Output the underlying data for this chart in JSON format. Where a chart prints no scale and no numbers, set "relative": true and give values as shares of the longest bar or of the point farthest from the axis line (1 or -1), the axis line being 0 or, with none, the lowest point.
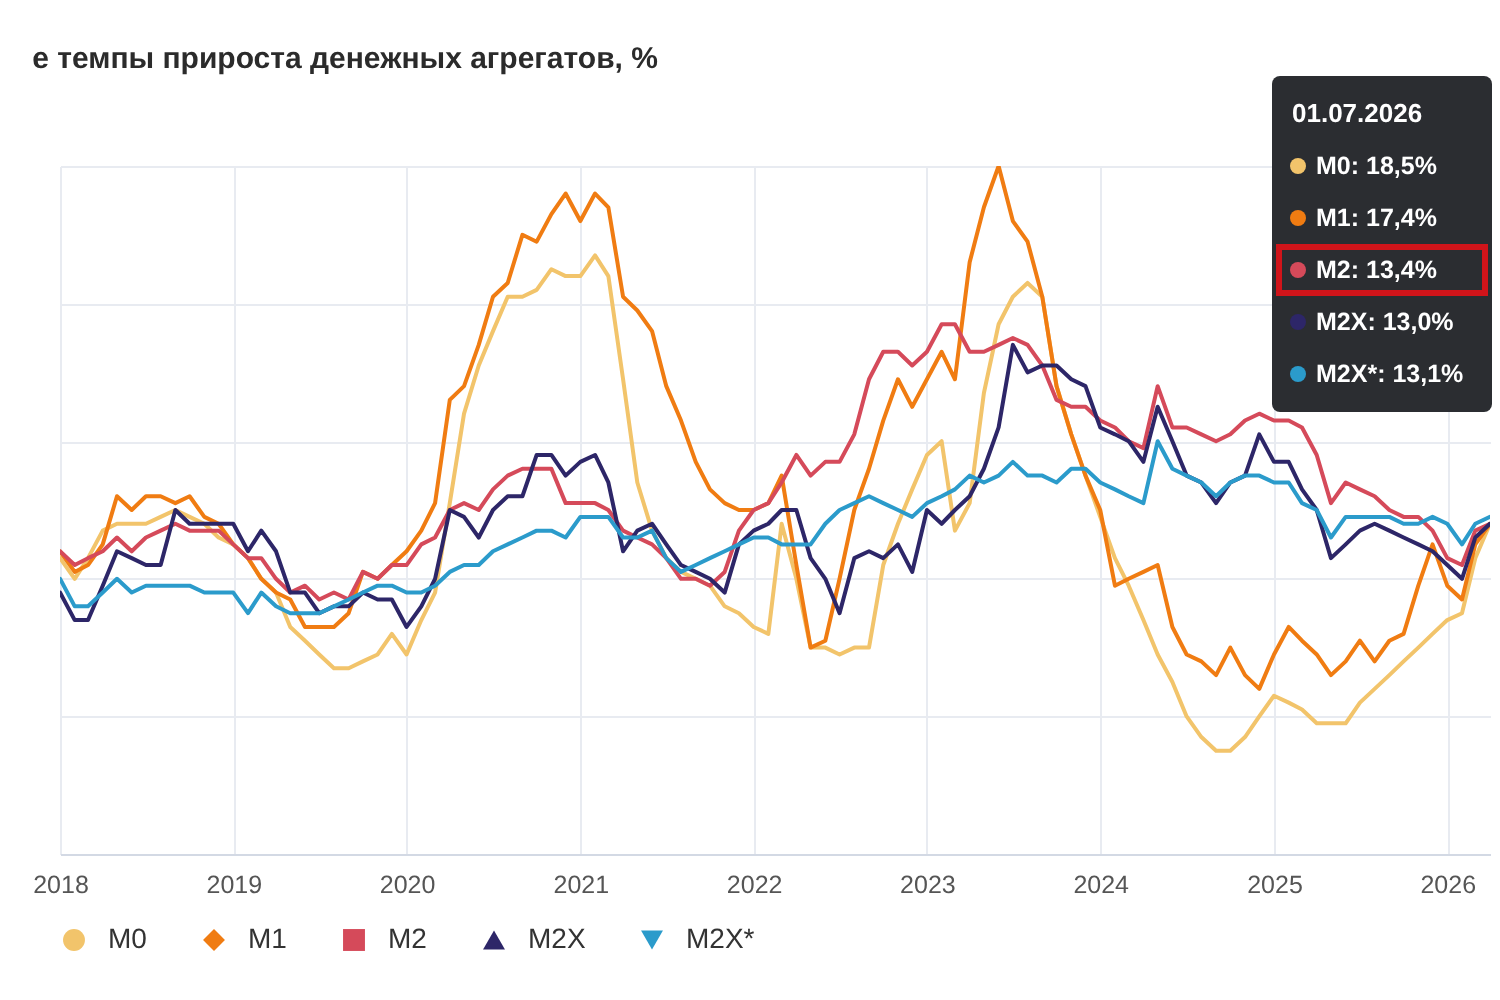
{
  "chart_data": {
    "type": "line",
    "title": "е темпы прироста денежных агрегатов, %",
    "relative": true,
    "grid": true,
    "legend": "bottom",
    "x": [
      "2018-01",
      "2018-02",
      "2018-03",
      "2018-04",
      "2018-05",
      "2018-06",
      "2018-07",
      "2018-08",
      "2018-09",
      "2018-10",
      "2018-11",
      "2018-12",
      "2019-01",
      "2019-02",
      "2019-03",
      "2019-04",
      "2019-05",
      "2019-06",
      "2019-07",
      "2019-08",
      "2019-09",
      "2019-10",
      "2019-11",
      "2019-12",
      "2020-01",
      "2020-02",
      "2020-03",
      "2020-04",
      "2020-05",
      "2020-06",
      "2020-07",
      "2020-08",
      "2020-09",
      "2020-10",
      "2020-11",
      "2020-12",
      "2021-01",
      "2021-02",
      "2021-03",
      "2021-04",
      "2021-05",
      "2021-06",
      "2021-07",
      "2021-08",
      "2021-09",
      "2021-10",
      "2021-11",
      "2021-12",
      "2022-01",
      "2022-02",
      "2022-03",
      "2022-04",
      "2022-05",
      "2022-06",
      "2022-07",
      "2022-08",
      "2022-09",
      "2022-10",
      "2022-11",
      "2022-12",
      "2023-01",
      "2023-02",
      "2023-03",
      "2023-04",
      "2023-05",
      "2023-06",
      "2023-07",
      "2023-08",
      "2023-09",
      "2023-10",
      "2023-11",
      "2023-12",
      "2024-01",
      "2024-02",
      "2024-03",
      "2024-04",
      "2024-05",
      "2024-06",
      "2024-07",
      "2024-08",
      "2024-09",
      "2024-10",
      "2024-11",
      "2024-12",
      "2025-01",
      "2025-02",
      "2025-03",
      "2025-04",
      "2025-05",
      "2025-06",
      "2025-07",
      "2025-08",
      "2025-09",
      "2025-10",
      "2025-11",
      "2025-12",
      "2026-01",
      "2026-02",
      "2026-03",
      "2026-04"
    ],
    "xlim": [
      "2018-01",
      "2026-04"
    ],
    "xticks": [
      "2018",
      "2019",
      "2020",
      "2021",
      "2022",
      "2023",
      "2024",
      "2025",
      "2026"
    ],
    "series": [
      {
        "name": "M0",
        "color": "#f2c46b",
        "values": [
          0.43,
          0.4,
          0.43,
          0.47,
          0.48,
          0.48,
          0.48,
          0.49,
          0.5,
          0.49,
          0.48,
          0.46,
          0.45,
          0.43,
          0.4,
          0.38,
          0.33,
          0.31,
          0.29,
          0.27,
          0.27,
          0.28,
          0.29,
          0.32,
          0.29,
          0.34,
          0.38,
          0.51,
          0.64,
          0.71,
          0.76,
          0.81,
          0.81,
          0.82,
          0.85,
          0.84,
          0.84,
          0.87,
          0.84,
          0.69,
          0.54,
          0.47,
          0.43,
          0.41,
          0.4,
          0.39,
          0.36,
          0.35,
          0.33,
          0.32,
          0.48,
          0.4,
          0.3,
          0.3,
          0.29,
          0.3,
          0.3,
          0.42,
          0.48,
          0.53,
          0.58,
          0.6,
          0.47,
          0.51,
          0.67,
          0.77,
          0.81,
          0.83,
          0.81,
          0.68,
          0.61,
          0.55,
          0.49,
          0.43,
          0.39,
          0.34,
          0.29,
          0.25,
          0.2,
          0.17,
          0.15,
          0.15,
          0.17,
          0.2,
          0.23,
          0.22,
          0.21,
          0.19,
          0.19,
          0.19,
          0.22,
          0.24,
          0.26,
          0.28,
          0.3,
          0.32,
          0.34,
          0.35,
          0.43,
          0.48
        ]
      },
      {
        "name": "M1",
        "color": "#f07c12",
        "values": [
          0.44,
          0.41,
          0.42,
          0.45,
          0.52,
          0.5,
          0.52,
          0.52,
          0.51,
          0.52,
          0.49,
          0.48,
          0.45,
          0.43,
          0.4,
          0.38,
          0.37,
          0.33,
          0.33,
          0.33,
          0.35,
          0.41,
          0.4,
          0.42,
          0.44,
          0.47,
          0.51,
          0.66,
          0.68,
          0.74,
          0.81,
          0.83,
          0.9,
          0.89,
          0.93,
          0.96,
          0.92,
          0.96,
          0.94,
          0.81,
          0.79,
          0.76,
          0.68,
          0.63,
          0.57,
          0.53,
          0.51,
          0.5,
          0.5,
          0.51,
          0.55,
          0.42,
          0.3,
          0.31,
          0.4,
          0.5,
          0.56,
          0.63,
          0.69,
          0.65,
          0.69,
          0.73,
          0.69,
          0.86,
          0.94,
          1.0,
          0.92,
          0.89,
          0.81,
          0.68,
          0.61,
          0.55,
          0.5,
          0.39,
          0.4,
          0.41,
          0.42,
          0.33,
          0.29,
          0.28,
          0.26,
          0.3,
          0.26,
          0.24,
          0.29,
          0.33,
          0.31,
          0.29,
          0.26,
          0.28,
          0.31,
          0.28,
          0.31,
          0.32,
          0.39,
          0.45,
          0.39,
          0.37,
          0.45,
          0.48
        ]
      },
      {
        "name": "M2",
        "color": "#d54a5a",
        "values": [
          0.44,
          0.42,
          0.43,
          0.44,
          0.46,
          0.44,
          0.46,
          0.47,
          0.48,
          0.47,
          0.47,
          0.47,
          0.45,
          0.43,
          0.43,
          0.4,
          0.38,
          0.39,
          0.37,
          0.38,
          0.37,
          0.41,
          0.4,
          0.42,
          0.42,
          0.45,
          0.46,
          0.5,
          0.51,
          0.5,
          0.53,
          0.55,
          0.56,
          0.56,
          0.56,
          0.51,
          0.51,
          0.51,
          0.5,
          0.47,
          0.46,
          0.45,
          0.43,
          0.4,
          0.4,
          0.39,
          0.41,
          0.47,
          0.5,
          0.51,
          0.54,
          0.58,
          0.55,
          0.57,
          0.57,
          0.61,
          0.69,
          0.73,
          0.73,
          0.71,
          0.73,
          0.77,
          0.77,
          0.73,
          0.73,
          0.74,
          0.75,
          0.74,
          0.71,
          0.66,
          0.65,
          0.65,
          0.63,
          0.62,
          0.6,
          0.59,
          0.68,
          0.62,
          0.62,
          0.61,
          0.6,
          0.61,
          0.63,
          0.64,
          0.63,
          0.63,
          0.62,
          0.58,
          0.51,
          0.54,
          0.53,
          0.52,
          0.5,
          0.49,
          0.49,
          0.47,
          0.43,
          0.42,
          0.47,
          0.48
        ]
      },
      {
        "name": "M2X",
        "color": "#2d2668",
        "values": [
          0.38,
          0.34,
          0.34,
          0.39,
          0.44,
          0.43,
          0.42,
          0.42,
          0.5,
          0.48,
          0.48,
          0.48,
          0.48,
          0.44,
          0.47,
          0.44,
          0.38,
          0.38,
          0.35,
          0.36,
          0.36,
          0.38,
          0.37,
          0.37,
          0.33,
          0.36,
          0.4,
          0.5,
          0.49,
          0.46,
          0.5,
          0.52,
          0.52,
          0.58,
          0.58,
          0.55,
          0.57,
          0.58,
          0.54,
          0.44,
          0.47,
          0.48,
          0.45,
          0.42,
          0.41,
          0.4,
          0.38,
          0.45,
          0.47,
          0.48,
          0.5,
          0.5,
          0.43,
          0.4,
          0.35,
          0.43,
          0.44,
          0.43,
          0.45,
          0.41,
          0.5,
          0.48,
          0.5,
          0.52,
          0.56,
          0.62,
          0.74,
          0.7,
          0.71,
          0.71,
          0.69,
          0.68,
          0.62,
          0.61,
          0.6,
          0.57,
          0.65,
          0.6,
          0.55,
          0.54,
          0.51,
          0.54,
          0.55,
          0.61,
          0.57,
          0.57,
          0.53,
          0.5,
          0.43,
          0.45,
          0.47,
          0.48,
          0.47,
          0.46,
          0.45,
          0.44,
          0.42,
          0.4,
          0.46,
          0.48
        ]
      },
      {
        "name": "M2X*",
        "color": "#2b9bcb",
        "values": [
          0.4,
          0.36,
          0.36,
          0.38,
          0.4,
          0.38,
          0.39,
          0.39,
          0.39,
          0.39,
          0.38,
          0.38,
          0.38,
          0.35,
          0.38,
          0.36,
          0.35,
          0.35,
          0.35,
          0.36,
          0.37,
          0.38,
          0.39,
          0.39,
          0.38,
          0.38,
          0.39,
          0.41,
          0.42,
          0.42,
          0.44,
          0.45,
          0.46,
          0.47,
          0.47,
          0.46,
          0.49,
          0.49,
          0.49,
          0.46,
          0.46,
          0.47,
          0.43,
          0.41,
          0.42,
          0.43,
          0.44,
          0.45,
          0.46,
          0.46,
          0.45,
          0.45,
          0.45,
          0.48,
          0.5,
          0.51,
          0.52,
          0.51,
          0.5,
          0.49,
          0.51,
          0.52,
          0.53,
          0.55,
          0.54,
          0.55,
          0.57,
          0.55,
          0.55,
          0.54,
          0.56,
          0.56,
          0.54,
          0.53,
          0.52,
          0.51,
          0.6,
          0.56,
          0.55,
          0.54,
          0.52,
          0.54,
          0.55,
          0.55,
          0.54,
          0.54,
          0.51,
          0.5,
          0.46,
          0.49,
          0.49,
          0.49,
          0.49,
          0.48,
          0.48,
          0.49,
          0.48,
          0.45,
          0.48,
          0.49
        ]
      }
    ],
    "annotations": [
      "01.07.2026",
      "M0: 18,5%",
      "M1: 17,4%",
      "M2: 13,4%",
      "M2X: 13,0%",
      "M2X*: 13,1%"
    ]
  }
}
